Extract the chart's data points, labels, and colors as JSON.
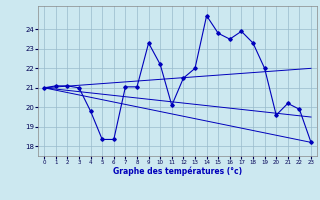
{
  "xlabel": "Graphe des températures (°c)",
  "bg_color": "#cce8f0",
  "line_color": "#0000bb",
  "grid_color": "#99bbcc",
  "xlim": [
    -0.5,
    23.5
  ],
  "ylim": [
    17.5,
    25.2
  ],
  "yticks": [
    18,
    19,
    20,
    21,
    22,
    23,
    24
  ],
  "xticks": [
    0,
    1,
    2,
    3,
    4,
    5,
    6,
    7,
    8,
    9,
    10,
    11,
    12,
    13,
    14,
    15,
    16,
    17,
    18,
    19,
    20,
    21,
    22,
    23
  ],
  "main_x": [
    0,
    1,
    2,
    3,
    4,
    5,
    6,
    7,
    8,
    9,
    10,
    11,
    12,
    13,
    14,
    15,
    16,
    17,
    18,
    19,
    20,
    21,
    22,
    23
  ],
  "main_y": [
    21.0,
    21.1,
    21.1,
    21.0,
    19.8,
    18.35,
    18.35,
    21.05,
    21.05,
    23.3,
    22.2,
    20.1,
    21.5,
    22.0,
    24.7,
    23.8,
    23.5,
    23.9,
    23.3,
    22.0,
    19.6,
    20.2,
    19.9,
    18.2
  ],
  "line2_x": [
    0,
    23
  ],
  "line2_y": [
    21.0,
    22.0
  ],
  "line3_x": [
    0,
    23
  ],
  "line3_y": [
    21.0,
    19.5
  ],
  "line4_x": [
    0,
    23
  ],
  "line4_y": [
    21.0,
    18.2
  ]
}
